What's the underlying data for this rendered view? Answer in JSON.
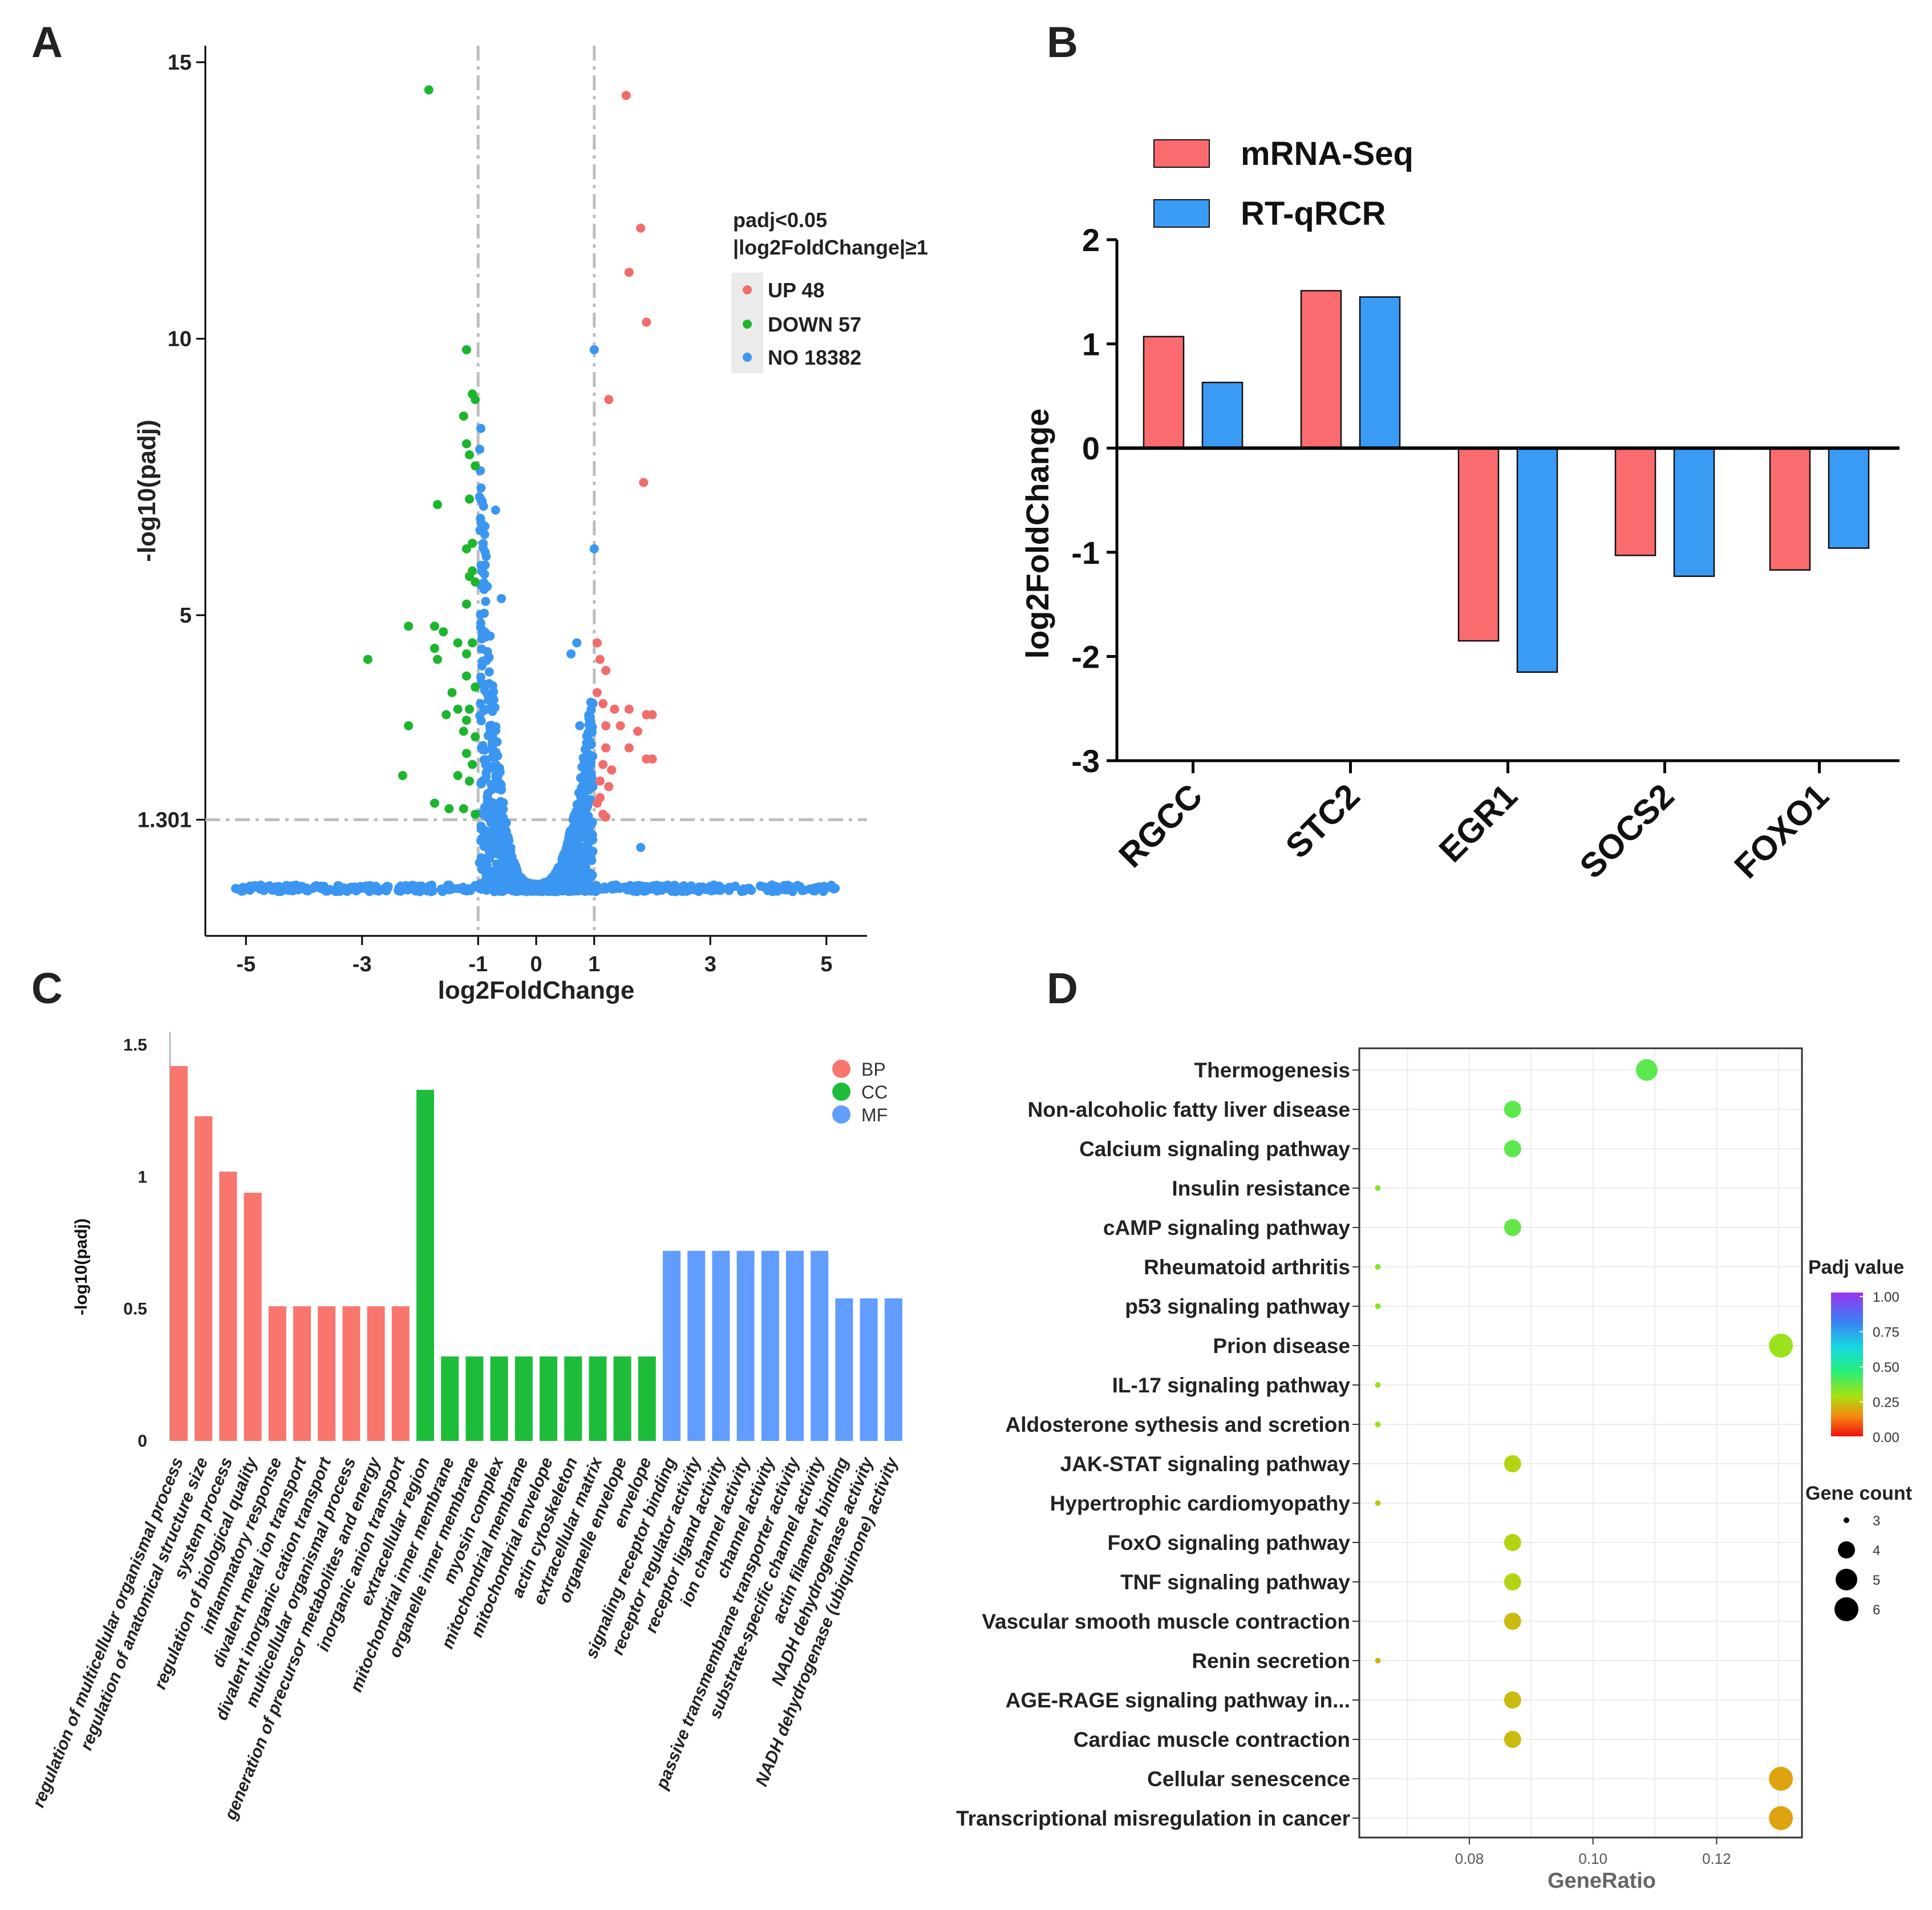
{
  "panel_labels": [
    "A",
    "B",
    "C",
    "D"
  ],
  "colors": {
    "up": "#f26c6c",
    "down": "#1db52e",
    "no": "#3a96f0",
    "mrna": "#f96b6e",
    "rtq": "#3a9bf5",
    "bp": "#f8766d",
    "cc": "#1ebc3b",
    "mf": "#619cff"
  },
  "chart_data": [
    {
      "id": "A",
      "type": "scatter",
      "title": "",
      "xlabel": "log2FoldChange",
      "ylabel": "-log10(padj)",
      "xlim": [
        -5.7,
        5.7
      ],
      "ylim": [
        -0.8,
        15.3
      ],
      "x_ticks": [
        -5,
        -3,
        -1,
        0,
        1,
        3,
        5
      ],
      "y_ticks": [
        1.301,
        5,
        10,
        15
      ],
      "y_tick_labels": [
        "1.301",
        "5",
        "10",
        "15"
      ],
      "thresholds": {
        "x": [
          -1,
          1
        ],
        "y": 1.301
      },
      "legend_title_1": "padj<0.05",
      "legend_title_2": "|log2FoldChange|≥1",
      "legend": [
        {
          "label": "UP 48",
          "key": "up"
        },
        {
          "label": "DOWN 57",
          "key": "down"
        },
        {
          "label": "NO 18382",
          "key": "no"
        }
      ],
      "up_points": [
        [
          1.55,
          14.4
        ],
        [
          1.8,
          12.0
        ],
        [
          1.6,
          11.2
        ],
        [
          1.9,
          10.3
        ],
        [
          1.25,
          8.9
        ],
        [
          1.85,
          7.4
        ],
        [
          1.05,
          4.5
        ],
        [
          1.1,
          4.2
        ],
        [
          1.2,
          4.0
        ],
        [
          1.05,
          3.6
        ],
        [
          1.15,
          3.4
        ],
        [
          1.35,
          3.3
        ],
        [
          1.6,
          3.3
        ],
        [
          1.9,
          3.2
        ],
        [
          2.0,
          3.2
        ],
        [
          1.2,
          3.0
        ],
        [
          1.45,
          3.0
        ],
        [
          1.75,
          2.9
        ],
        [
          1.2,
          2.6
        ],
        [
          1.6,
          2.6
        ],
        [
          1.9,
          2.4
        ],
        [
          2.0,
          2.4
        ],
        [
          1.15,
          2.3
        ],
        [
          1.3,
          2.2
        ],
        [
          1.1,
          2.0
        ],
        [
          1.25,
          1.9
        ],
        [
          1.1,
          1.7
        ],
        [
          1.05,
          1.6
        ],
        [
          1.15,
          1.4
        ],
        [
          1.2,
          1.35
        ]
      ],
      "down_points": [
        [
          -1.85,
          14.5
        ],
        [
          -1.2,
          9.8
        ],
        [
          -1.1,
          9.0
        ],
        [
          -1.05,
          8.9
        ],
        [
          -1.25,
          8.6
        ],
        [
          -1.2,
          8.1
        ],
        [
          -1.15,
          7.9
        ],
        [
          -1.05,
          7.7
        ],
        [
          -1.7,
          7.0
        ],
        [
          -1.15,
          7.1
        ],
        [
          -1.1,
          6.3
        ],
        [
          -1.2,
          6.2
        ],
        [
          -1.1,
          5.8
        ],
        [
          -1.15,
          5.7
        ],
        [
          -1.05,
          5.6
        ],
        [
          -1.2,
          5.2
        ],
        [
          -2.2,
          4.8
        ],
        [
          -1.75,
          4.8
        ],
        [
          -1.6,
          4.7
        ],
        [
          -1.35,
          4.5
        ],
        [
          -1.1,
          4.5
        ],
        [
          -1.75,
          4.4
        ],
        [
          -1.2,
          4.3
        ],
        [
          -2.9,
          4.2
        ],
        [
          -1.7,
          4.2
        ],
        [
          -1.2,
          3.9
        ],
        [
          -1.05,
          3.7
        ],
        [
          -1.45,
          3.6
        ],
        [
          -1.35,
          3.3
        ],
        [
          -1.15,
          3.3
        ],
        [
          -1.55,
          3.2
        ],
        [
          -1.2,
          3.1
        ],
        [
          -2.2,
          3.0
        ],
        [
          -1.25,
          2.9
        ],
        [
          -1.05,
          2.8
        ],
        [
          -1.2,
          2.5
        ],
        [
          -1.1,
          2.3
        ],
        [
          -2.3,
          2.1
        ],
        [
          -1.35,
          2.1
        ],
        [
          -1.15,
          2.0
        ],
        [
          -1.75,
          1.6
        ],
        [
          -1.5,
          1.5
        ],
        [
          -1.25,
          1.5
        ],
        [
          -1.05,
          1.4
        ]
      ],
      "no_points": [
        [
          1.0,
          9.8
        ],
        [
          -0.95,
          7.3
        ],
        [
          -0.7,
          6.9
        ],
        [
          1.0,
          6.2
        ],
        [
          0.7,
          4.5
        ],
        [
          -0.6,
          5.3
        ],
        [
          0.6,
          4.3
        ],
        [
          1.8,
          0.8
        ],
        [
          -0.8,
          3.0
        ],
        [
          0.75,
          3.0
        ]
      ]
    },
    {
      "id": "B",
      "type": "bar",
      "title": "",
      "xlabel": "",
      "ylabel": "log2FoldChange",
      "ylim": [
        -3,
        2
      ],
      "y_ticks": [
        2,
        1,
        0,
        -1,
        -2,
        -3
      ],
      "categories": [
        "RGCC",
        "STC2",
        "EGR1",
        "SOCS2",
        "FOXO1"
      ],
      "series": [
        {
          "name": "mRNA-Seq",
          "key": "mrna",
          "values": [
            1.07,
            1.51,
            -1.85,
            -1.03,
            -1.17
          ]
        },
        {
          "name": "RT-qRCR",
          "key": "rtq",
          "values": [
            0.63,
            1.45,
            -2.15,
            -1.23,
            -0.96
          ]
        }
      ]
    },
    {
      "id": "C",
      "type": "bar",
      "title": "",
      "xlabel": "",
      "ylabel": "-log10(padj)",
      "ylim": [
        0,
        1.55
      ],
      "y_ticks": [
        0,
        0.5,
        1,
        1.5
      ],
      "y_tick_labels": [
        "0",
        "0.5",
        "1",
        "1.5"
      ],
      "legend": [
        {
          "label": "BP",
          "key": "bp"
        },
        {
          "label": "CC",
          "key": "cc"
        },
        {
          "label": "MF",
          "key": "mf"
        }
      ],
      "categories": [
        "regulation of multicellular organismal process",
        "regulation of anatomical structure size",
        "system process",
        "regulation of biological quality",
        "inflammatory response",
        "divalent metal ion transport",
        "divalent inorganic cation transport",
        "multicellular organismal process",
        "generation of precursor metabolites and energy",
        "inorganic anion transport",
        "extracellular region",
        "mitochondrial inner membrane",
        "organelle inner membrane",
        "myosin complex",
        "mitochondrial membrane",
        "mitochondrial envelope",
        "actin cytoskeleton",
        "extracellular matrix",
        "organelle envelope",
        "envelope",
        "signaling receptor binding",
        "receptor regulator activity",
        "receptor ligand activity",
        "ion channel activity",
        "channel activity",
        "passive transmembrane transporter activity",
        "substrate-specific channel activity",
        "actin filament binding",
        "NADH dehydrogenase activity",
        "NADH dehydrogenase (ubiquinone) activity"
      ],
      "values": [
        1.42,
        1.23,
        1.02,
        0.94,
        0.51,
        0.51,
        0.51,
        0.51,
        0.51,
        0.51,
        1.33,
        0.32,
        0.32,
        0.32,
        0.32,
        0.32,
        0.32,
        0.32,
        0.32,
        0.32,
        0.72,
        0.72,
        0.72,
        0.72,
        0.72,
        0.72,
        0.72,
        0.54,
        0.54,
        0.54
      ],
      "groups": [
        "bp",
        "bp",
        "bp",
        "bp",
        "bp",
        "bp",
        "bp",
        "bp",
        "bp",
        "bp",
        "cc",
        "cc",
        "cc",
        "cc",
        "cc",
        "cc",
        "cc",
        "cc",
        "cc",
        "cc",
        "mf",
        "mf",
        "mf",
        "mf",
        "mf",
        "mf",
        "mf",
        "mf",
        "mf",
        "mf"
      ]
    },
    {
      "id": "D",
      "type": "scatter",
      "title": "",
      "xlabel": "GeneRatio",
      "ylabel": "",
      "xlim": [
        0.0622,
        0.1338
      ],
      "x_ticks": [
        0.08,
        0.1,
        0.12
      ],
      "x_tick_labels": [
        "0.08",
        "0.10",
        "0.12"
      ],
      "categories": [
        "Thermogenesis",
        "Non-alcoholic fatty liver disease",
        "Calcium signaling pathway",
        "Insulin resistance",
        "cAMP signaling pathway",
        "Rheumatoid arthritis",
        "p53 signaling pathway",
        "Prion disease",
        "IL-17 signaling pathway",
        "Aldosterone sythesis and scretion",
        "JAK-STAT signaling pathway",
        "Hypertrophic cardiomyopathy",
        "FoxO signaling pathway",
        "TNF signaling pathway",
        "Vascular smooth muscle contraction",
        "Renin secretion",
        "AGE-RAGE signaling pathway in...",
        "Cardiac muscle contraction",
        "Cellular senescence",
        "Transcriptional misregulation in cancer"
      ],
      "gene_ratio": [
        0.1087,
        0.087,
        0.087,
        0.0652,
        0.087,
        0.0652,
        0.0652,
        0.1304,
        0.0652,
        0.0652,
        0.087,
        0.0652,
        0.087,
        0.087,
        0.087,
        0.0652,
        0.087,
        0.087,
        0.1304,
        0.1304
      ],
      "gene_count": [
        5,
        4,
        4,
        3,
        4,
        3,
        3,
        6,
        3,
        3,
        4,
        3,
        4,
        4,
        4,
        3,
        4,
        4,
        6,
        6
      ],
      "padj": [
        0.38,
        0.38,
        0.38,
        0.34,
        0.37,
        0.32,
        0.32,
        0.3,
        0.3,
        0.3,
        0.26,
        0.24,
        0.26,
        0.26,
        0.22,
        0.2,
        0.22,
        0.22,
        0.18,
        0.18
      ],
      "legend_padj_title": "Padj  value",
      "legend_padj_ticks": [
        "1.00",
        "0.75",
        "0.50",
        "0.25",
        "0.00"
      ],
      "legend_count_title": "Gene count",
      "legend_count_ticks": [
        "3",
        "4",
        "5",
        "6"
      ]
    }
  ]
}
